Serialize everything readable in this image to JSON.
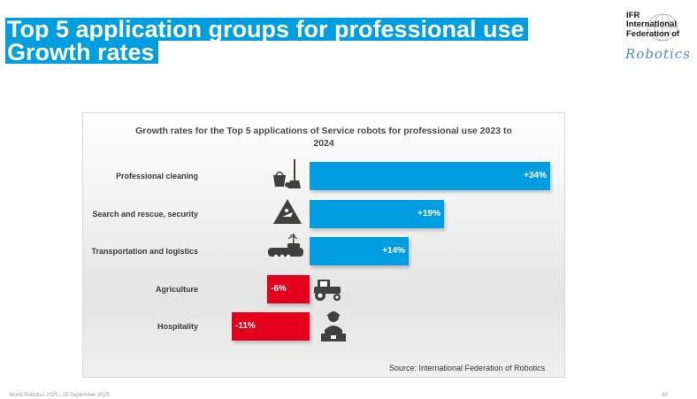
{
  "slide": {
    "title_line1": "Top 5 application groups for professional use",
    "title_line2": "Growth rates",
    "footer": "World Robotics 2025  |  25 September 2025",
    "page_number": "30"
  },
  "logo": {
    "line1": "IFR",
    "line2": "International",
    "line3": "Federation of",
    "script": "Robotics"
  },
  "colors": {
    "positive": "#009ee0",
    "negative": "#e2001a",
    "title_bg": "#009ee0"
  },
  "chart_data": {
    "type": "bar",
    "orientation": "horizontal",
    "title_line1": "Growth rates for the Top 5 applications of Service robots for professional use 2023 to",
    "title_line2": "2024",
    "categories": [
      "Professional cleaning",
      "Search and rescue, security",
      "Transportation and logistics",
      "Agriculture",
      "Hospitality"
    ],
    "values": [
      34,
      19,
      14,
      -6,
      -11
    ],
    "value_labels": [
      "+34%",
      "+19%",
      "+14%",
      "-6%",
      "-11%"
    ],
    "icons": [
      "cleaning-icon",
      "warning-sign-icon",
      "delivery-robot-icon",
      "tractor-icon",
      "receptionist-icon"
    ],
    "unit": "%",
    "source": "Source: International Federation of Robotics"
  }
}
